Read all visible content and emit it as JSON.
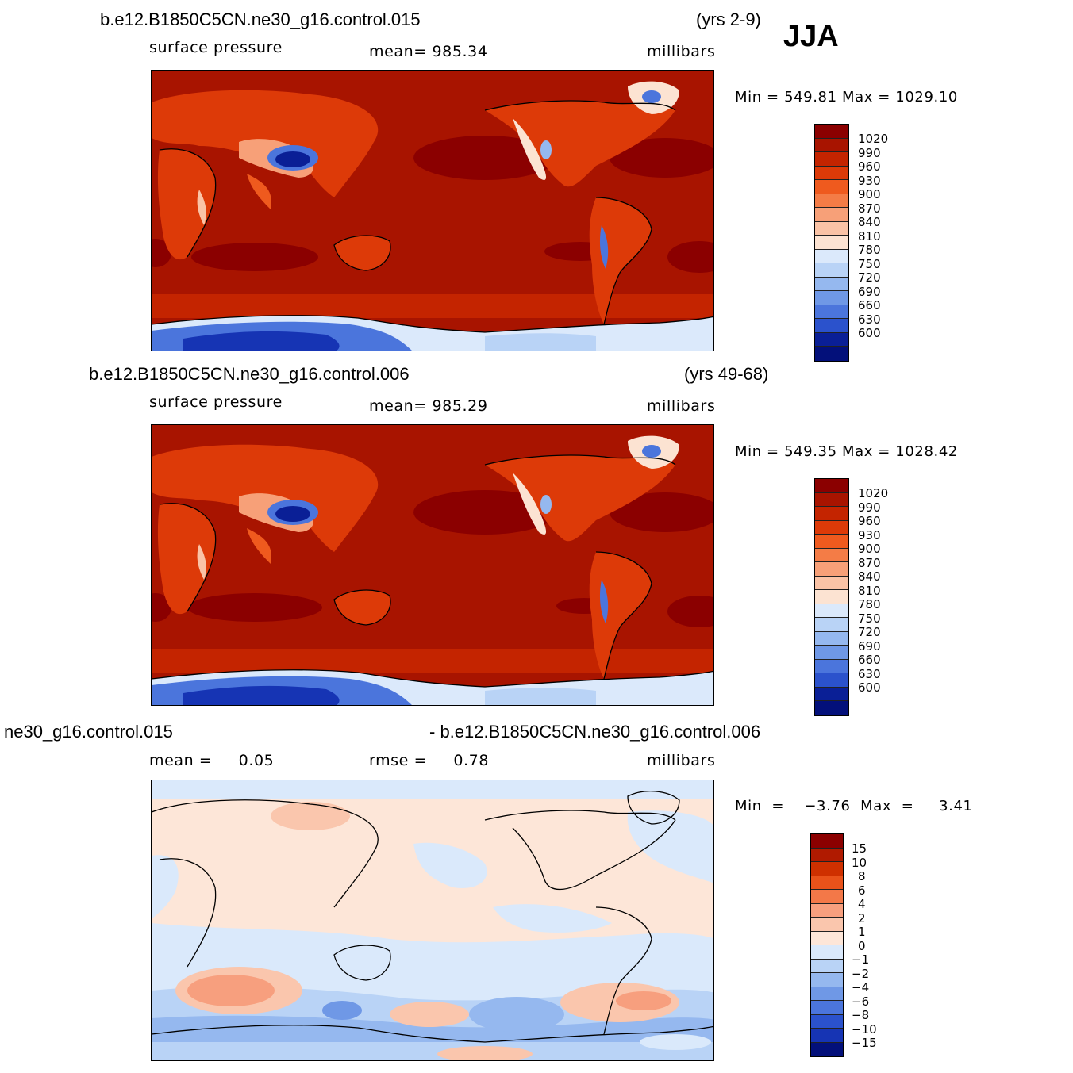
{
  "season": "JJA",
  "panels": [
    {
      "case": "b.e12.B1850C5CN.ne30_g16.control.015",
      "years": "(yrs 2-9)",
      "variable": "surface pressure",
      "stat": "mean=  985.34",
      "units": "millibars",
      "minmax": "Min  =  549.81  Max  =  1029.10",
      "levels": [
        "1020",
        "990",
        "960",
        "930",
        "900",
        "870",
        "840",
        "810",
        "780",
        "750",
        "720",
        "690",
        "660",
        "630",
        "600"
      ]
    },
    {
      "case": "b.e12.B1850C5CN.ne30_g16.control.006",
      "years": "(yrs 49-68)",
      "variable": "surface pressure",
      "stat": "mean=  985.29",
      "units": "millibars",
      "minmax": "Min  =  549.35  Max  =  1028.42",
      "levels": [
        "1020",
        "990",
        "960",
        "930",
        "900",
        "870",
        "840",
        "810",
        "780",
        "750",
        "720",
        "690",
        "660",
        "630",
        "600"
      ]
    },
    {
      "case_left": "ne30_g16.control.015",
      "case_right": "- b.e12.B1850C5CN.ne30_g16.control.006",
      "stat_mean": "mean =     0.05",
      "stat_rmse": "rmse =     0.78",
      "units": "millibars",
      "minmax": "Min  =    −3.76  Max  =     3.41",
      "levels": [
        "15",
        "10",
        "8",
        "6",
        "4",
        "2",
        "1",
        "0",
        "−1",
        "−2",
        "−4",
        "−6",
        "−8",
        "−10",
        "−15"
      ]
    }
  ],
  "colors": {
    "abs_scale": [
      "#8b0000",
      "#a81400",
      "#c42400",
      "#dd3a08",
      "#ef5a1e",
      "#f47c46",
      "#f7a078",
      "#fac3a6",
      "#fce3d2",
      "#dbe9fb",
      "#b9d3f6",
      "#95b8ef",
      "#6f98e6",
      "#4b75dc",
      "#2b52cc",
      "#1634b4",
      "#0a1f96",
      "#03107a"
    ],
    "diff_scale": [
      "#8b0000",
      "#b01a00",
      "#cf3000",
      "#e9521a",
      "#f37848",
      "#f79f7e",
      "#fac6ad",
      "#fde6d8",
      "#dae9fb",
      "#b9d3f6",
      "#95b8ef",
      "#6f98e6",
      "#4b75dc",
      "#2b52cc",
      "#1634b4",
      "#03107a"
    ]
  }
}
